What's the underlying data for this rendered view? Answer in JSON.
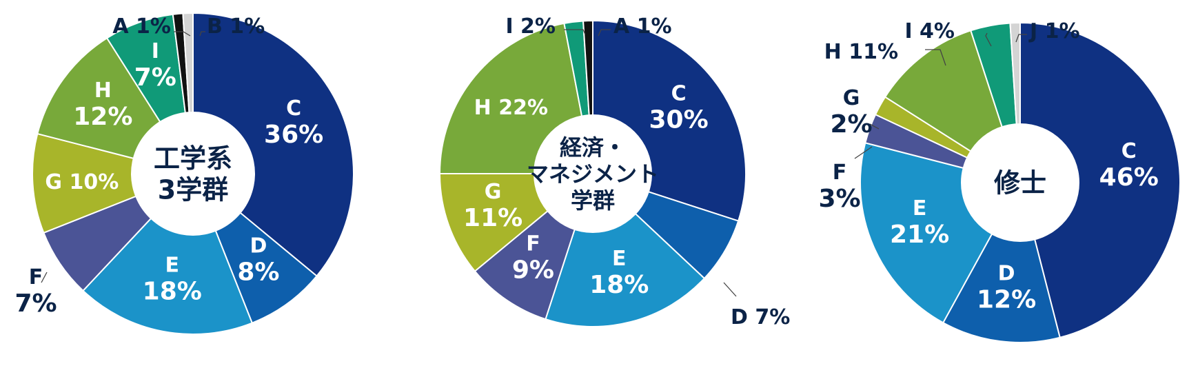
{
  "colors": {
    "A": "#111111",
    "B": "#d4d4d4",
    "C": "#0f3182",
    "D": "#0e5fac",
    "E": "#1b93c9",
    "F": "#4b5496",
    "G": "#a8b52a",
    "H": "#78a93a",
    "I": "#109a78",
    "J": "#d4d4d4",
    "dark_text": "#0b2347",
    "light_text": "#ffffff",
    "leader": "#444444"
  },
  "chart_data": [
    {
      "type": "pie",
      "title": "工学系 3学群",
      "title_lines": [
        "工学系",
        "3学群"
      ],
      "slices": [
        {
          "label": "C",
          "value": 36,
          "text": "36%"
        },
        {
          "label": "D",
          "value": 8,
          "text": "8%"
        },
        {
          "label": "E",
          "value": 18,
          "text": "18%"
        },
        {
          "label": "F",
          "value": 7,
          "text": "7%"
        },
        {
          "label": "G",
          "value": 10,
          "text": "10%"
        },
        {
          "label": "H",
          "value": 12,
          "text": "12%"
        },
        {
          "label": "I",
          "value": 7,
          "text": "7%"
        },
        {
          "label": "A",
          "value": 1,
          "text": "1%"
        },
        {
          "label": "B",
          "value": 1,
          "text": "1%"
        }
      ]
    },
    {
      "type": "pie",
      "title": "経済・マネジメント学群",
      "title_lines": [
        "経済・",
        "マネジメント",
        "学群"
      ],
      "slices": [
        {
          "label": "C",
          "value": 30,
          "text": "30%"
        },
        {
          "label": "D",
          "value": 7,
          "text": "7%"
        },
        {
          "label": "E",
          "value": 18,
          "text": "18%"
        },
        {
          "label": "F",
          "value": 9,
          "text": "9%"
        },
        {
          "label": "G",
          "value": 11,
          "text": "11%"
        },
        {
          "label": "H",
          "value": 22,
          "text": "22%"
        },
        {
          "label": "I",
          "value": 2,
          "text": "2%"
        },
        {
          "label": "A",
          "value": 1,
          "text": "1%"
        }
      ]
    },
    {
      "type": "pie",
      "title": "修士",
      "title_lines": [
        "修士"
      ],
      "slices": [
        {
          "label": "C",
          "value": 46,
          "text": "46%"
        },
        {
          "label": "D",
          "value": 12,
          "text": "12%"
        },
        {
          "label": "E",
          "value": 21,
          "text": "21%"
        },
        {
          "label": "F",
          "value": 3,
          "text": "3%"
        },
        {
          "label": "G",
          "value": 2,
          "text": "2%"
        },
        {
          "label": "H",
          "value": 11,
          "text": "11%"
        },
        {
          "label": "I",
          "value": 4,
          "text": "4%"
        },
        {
          "label": "J",
          "value": 1,
          "text": "1%"
        }
      ]
    }
  ]
}
